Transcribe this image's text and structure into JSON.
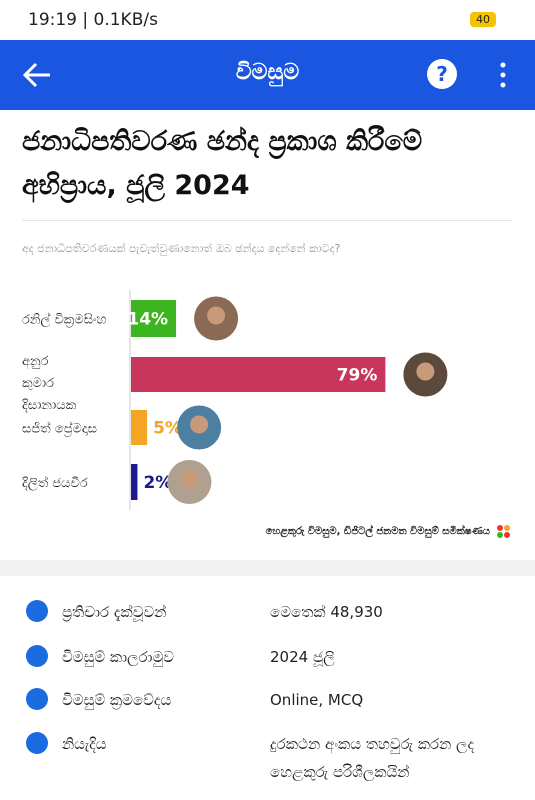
{
  "status_bar": {
    "time": "19:19 | 0.1KB/s",
    "battery": "40"
  },
  "app_bar": {
    "title": "විමසුම"
  },
  "title": "ජනාධිපතිවරණ ඡන්ද ප්‍රකාශ කිරීමේ අභිප්‍රාය, ජූලි 2024",
  "chart_data": {
    "type": "bar",
    "orientation": "horizontal",
    "subtitle": "අද ජනාධිපතිවරණයක් පැවැත්වුණානොත් ඔබ ඡන්දය දෙන්නේ කාටද?",
    "categories": [
      "රනිල් වික්‍රමසිංහ",
      "අනුර කුමාර දිසානායක",
      "සජිත් ප්‍රේමදාස",
      "දිලිත් ජයවීර"
    ],
    "values": [
      14,
      79,
      5,
      2
    ],
    "value_labels": [
      "14%",
      "79%",
      "5%",
      "2%"
    ],
    "colors": [
      "#3cb521",
      "#c8375b",
      "#f5a524",
      "#1d1a8c"
    ],
    "source": "හෙළකුරු විමසුම, ඩිජිටල් ජනමත විමසුම් සමීක්ෂණය"
  },
  "details": [
    {
      "label": "ප්‍රතිචාර දැක්වූවන්",
      "value": "මෙතෙක් 48,930"
    },
    {
      "label": "විමසුම් කාලරාමුව",
      "value": "2024 ජූලි"
    },
    {
      "label": "විමසුම් ක්‍රමවේදය",
      "value": "Online, MCQ"
    },
    {
      "label": "නියැදිය",
      "value": "දුරකථන අංකය තහවුරු කරන ලද හෙළකුරු පරිශීලකයින්"
    }
  ]
}
